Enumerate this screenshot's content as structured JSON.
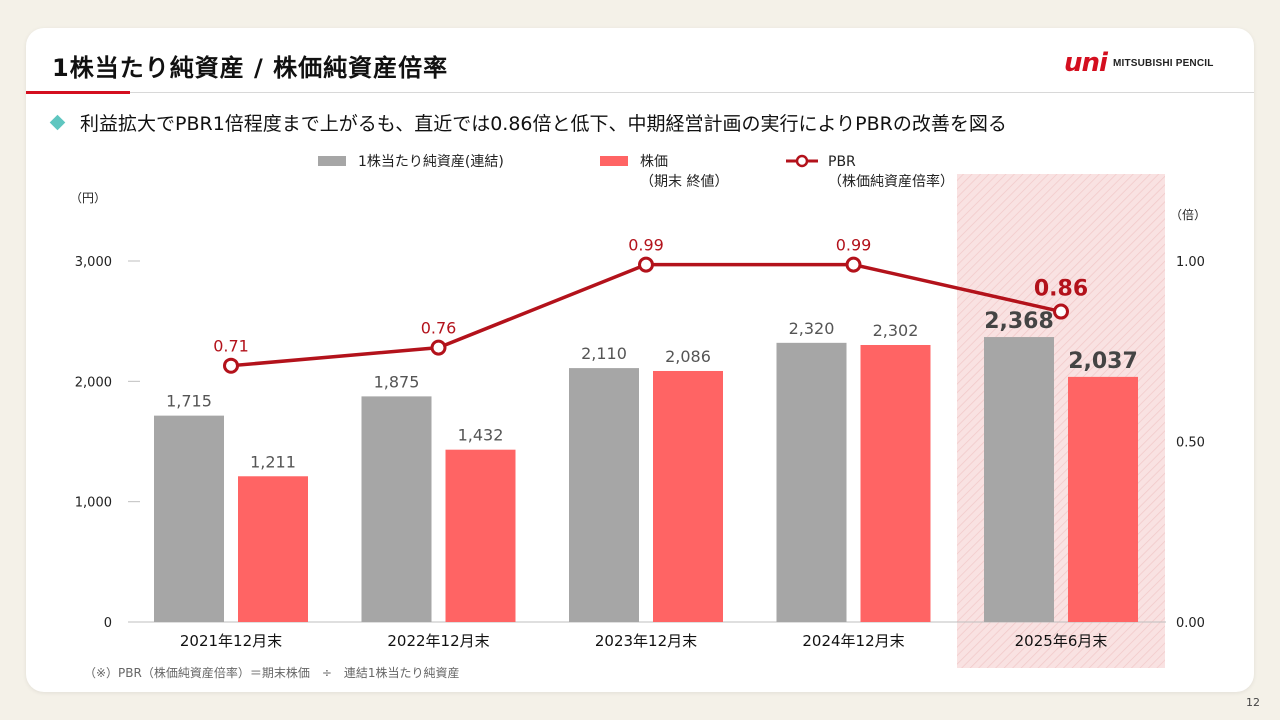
{
  "title": "1株当たり純資産 / 株価純資産倍率",
  "brand": {
    "mark": "uni",
    "text": "MITSUBISHI PENCIL"
  },
  "headline": "利益拡大でPBR1倍程度まで上がるも、直近では0.86倍と低下、中期経営計画の実行によりPBRの改善を図る",
  "footnote": "（※）PBR（株価純資産倍率）＝期末株価　÷　連結1株当たり純資産",
  "page_number": "12",
  "colors": {
    "bps": "#a6a6a6",
    "price": "#ff6464",
    "pbr": "#b3121b",
    "highlight": "#f9e2e2",
    "accent": "#d40f1f"
  },
  "chart_data": {
    "type": "bar",
    "categories": [
      "2021年12月末",
      "2022年12月末",
      "2023年12月末",
      "2024年12月末",
      "2025年6月末"
    ],
    "series": [
      {
        "name": "1株当たり純資産(連結)",
        "type": "bar",
        "axis": "left",
        "values": [
          1715,
          1875,
          2110,
          2320,
          2368
        ],
        "labels": [
          "1,715",
          "1,875",
          "2,110",
          "2,320",
          "2,368"
        ]
      },
      {
        "name": "株価\n（期末 終値）",
        "type": "bar",
        "axis": "left",
        "values": [
          1211,
          1432,
          2086,
          2302,
          2037
        ],
        "labels": [
          "1,211",
          "1,432",
          "2,086",
          "2,302",
          "2,037"
        ]
      },
      {
        "name": "PBR\n（株価純資産倍率）",
        "type": "line",
        "axis": "right",
        "values": [
          0.71,
          0.76,
          0.99,
          0.99,
          0.86
        ],
        "labels": [
          "0.71",
          "0.76",
          "0.99",
          "0.99",
          "0.86"
        ]
      }
    ],
    "y_left": {
      "unit": "（円）",
      "ylim": [
        0,
        3000
      ],
      "ticks": [
        0,
        1000,
        2000,
        3000
      ],
      "tick_labels": [
        "0",
        "1,000",
        "2,000",
        "3,000"
      ]
    },
    "y_right": {
      "unit": "（倍）",
      "ylim": [
        0,
        1.0
      ],
      "ticks": [
        0,
        0.5,
        1.0
      ],
      "tick_labels": [
        "0.00",
        "0.50",
        "1.00"
      ]
    },
    "highlight_category": "2025年6月末",
    "grid": false,
    "legend_position": "top"
  }
}
